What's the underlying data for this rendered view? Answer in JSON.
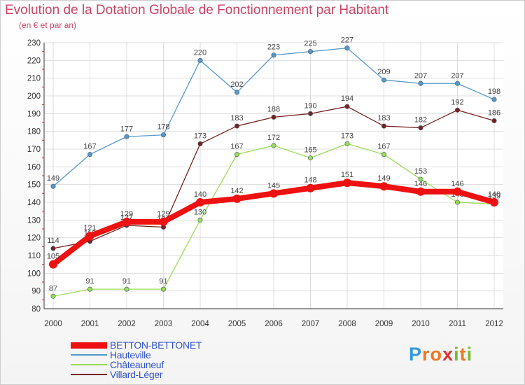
{
  "chart_data": {
    "type": "line",
    "title": "Evolution de la Dotation Globale de Fonctionnement par Habitant",
    "subtitle": "(en € et par an)",
    "x": [
      "2000",
      "2001",
      "2002",
      "2003",
      "2004",
      "2005",
      "2006",
      "2007",
      "2008",
      "2009",
      "2010",
      "2011",
      "2012"
    ],
    "y_ticks": [
      80,
      90,
      100,
      110,
      120,
      130,
      140,
      150,
      160,
      170,
      180,
      190,
      200,
      210,
      220,
      230
    ],
    "ylim": [
      80,
      230
    ],
    "grid": true,
    "series": [
      {
        "name": "Hauteville",
        "color": "#5599cc",
        "values": [
          149,
          167,
          177,
          178,
          220,
          202,
          223,
          225,
          227,
          209,
          207,
          207,
          198
        ]
      },
      {
        "name": "Villard-Léger",
        "color": "#772222",
        "values": [
          114,
          118,
          127,
          126,
          173,
          183,
          188,
          190,
          194,
          183,
          182,
          192,
          186
        ]
      },
      {
        "name": "Châteauneuf",
        "color": "#99dd55",
        "values": [
          87,
          91,
          91,
          91,
          130,
          167,
          172,
          165,
          173,
          167,
          153,
          140,
          139
        ]
      },
      {
        "name": "BETTON-BETTONET",
        "color": "#ee1111",
        "highlight": true,
        "values": [
          105,
          121,
          129,
          129,
          140,
          142,
          145,
          148,
          151,
          149,
          146,
          146,
          140
        ]
      }
    ],
    "legend_order": [
      "BETTON-BETTONET",
      "Hauteville",
      "Châteauneuf",
      "Villard-Léger"
    ]
  },
  "logo": {
    "letters": [
      "P",
      "r",
      "o",
      "x",
      "i",
      "t",
      "i"
    ],
    "colors": [
      "#3399dd",
      "#ee7722",
      "#ee7722",
      "#dd3333",
      "#77bb33",
      "#ee7722",
      "#77bb33"
    ]
  }
}
